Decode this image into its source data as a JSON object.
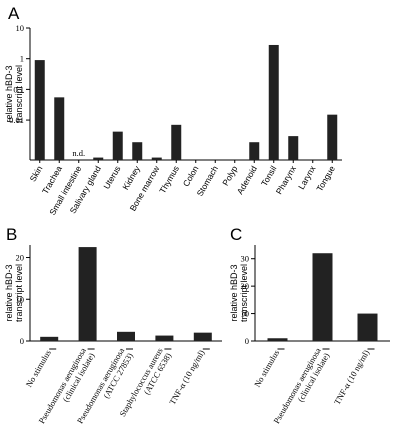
{
  "chart_data": [
    {
      "panel": "A",
      "type": "bar",
      "yscale": "log",
      "ylabel": [
        "relative hBD-3",
        "transcript level"
      ],
      "ylim": [
        0.0005,
        10
      ],
      "yticks": [
        0.01,
        0.1,
        1,
        10
      ],
      "ytick_labels": [
        "0.01",
        "0.1",
        "1",
        "10"
      ],
      "categories": [
        "Skin",
        "Trachea",
        "Small intestine",
        "Salivary gland",
        "Uterus",
        "Kidney",
        "Bone marrow",
        "Thymus",
        "Colon",
        "Stomach",
        "Polyp",
        "Adenoid",
        "Tonsil",
        "Pharynx",
        "Larynx",
        "Tongue"
      ],
      "values": [
        0.9,
        0.055,
        null,
        0.0006,
        0.0042,
        0.0019,
        0.0006,
        0.007,
        0.0005,
        0.0005,
        0.0005,
        0.0019,
        2.8,
        0.003,
        0.0005,
        0.015
      ],
      "annotations": [
        {
          "category": "Small intestine",
          "text": "n.d."
        }
      ]
    },
    {
      "panel": "B",
      "type": "bar",
      "ylabel": [
        "relative hBD-3",
        "transcript level"
      ],
      "ylim": [
        0,
        23
      ],
      "yticks": [
        0,
        10,
        20
      ],
      "ytick_labels": [
        "0",
        "10",
        "20"
      ],
      "categories": [
        "No stimulus",
        "Pseudomonas aeruginosa (clinical isolate)",
        "Pseudomonas aeruginosa (ATCC 27853)",
        "Staphylococcus aureus (ATCC 6538)",
        "TNF-α (10 ng/ml)"
      ],
      "category_lines": [
        [
          "No stimulus"
        ],
        [
          "Pseudomonas aeruginosa",
          "(clinical isolate)"
        ],
        [
          "Pseudomonas aeruginosa",
          "(ATCC 27853)"
        ],
        [
          "Staphylococcus aureus",
          "(ATCC 6538)"
        ],
        [
          "TNF-α (10 ng/ml)"
        ]
      ],
      "values": [
        1,
        22.5,
        2.2,
        1.3,
        2.0
      ]
    },
    {
      "panel": "C",
      "type": "bar",
      "ylabel": [
        "relative hBD-3",
        "transcript level"
      ],
      "ylim": [
        0,
        35
      ],
      "yticks": [
        0,
        10,
        20,
        30
      ],
      "ytick_labels": [
        "0",
        "10",
        "20",
        "30"
      ],
      "categories": [
        "No stimulus",
        "Pseudomonas aeruginosa (clinical isolate)",
        "TNF-α (10 ng/ml)"
      ],
      "category_lines": [
        [
          "No stimulus"
        ],
        [
          "Pseudomonas aeruginosa",
          "(clinical isolate)"
        ],
        [
          "TNF-α (10 ng/ml)"
        ]
      ],
      "values": [
        1,
        32,
        10
      ]
    }
  ],
  "bar_color": "#222222"
}
